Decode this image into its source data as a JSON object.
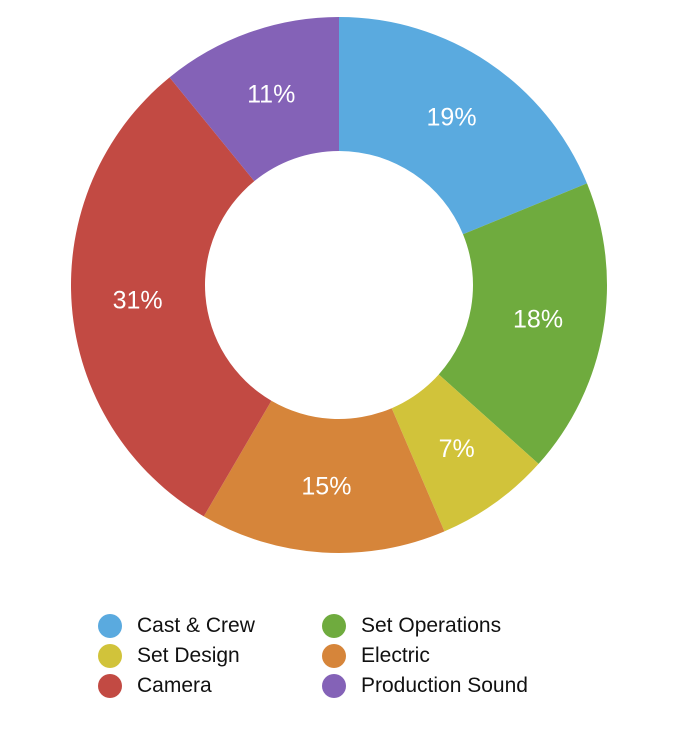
{
  "chart_data": {
    "type": "pie",
    "donut": true,
    "title": "",
    "slices": [
      {
        "label": "Cast & Crew",
        "value": 19,
        "display": "19%",
        "color": "#5aaadf"
      },
      {
        "label": "Set Operations",
        "value": 18,
        "display": "18%",
        "color": "#6fab3e"
      },
      {
        "label": "Set Design",
        "value": 7,
        "display": "7%",
        "color": "#d1c33a"
      },
      {
        "label": "Electric",
        "value": 15,
        "display": "15%",
        "color": "#d6853a"
      },
      {
        "label": "Camera",
        "value": 31,
        "display": "31%",
        "color": "#c24a43"
      },
      {
        "label": "Production Sound",
        "value": 11,
        "display": "11%",
        "color": "#8462b7"
      }
    ],
    "legend": {
      "placement": "bottom",
      "order": [
        "Cast & Crew",
        "Set Operations",
        "Set Design",
        "Electric",
        "Camera",
        "Production Sound"
      ]
    }
  }
}
